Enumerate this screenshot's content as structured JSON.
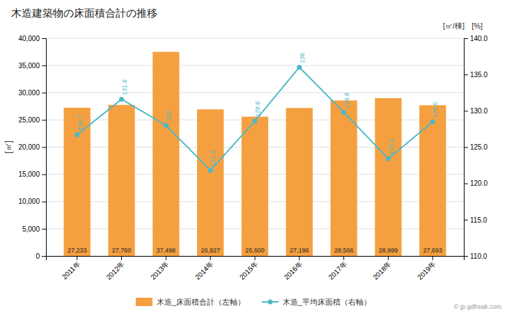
{
  "chart_data": {
    "type": "bar",
    "title": "木造建築物の床面積合計の推移",
    "categories": [
      "2011年",
      "2012年",
      "2013年",
      "2014年",
      "2015年",
      "2016年",
      "2017年",
      "2018年",
      "2019年"
    ],
    "series": [
      {
        "name": "木造_床面積合計（左軸）",
        "type": "bar",
        "color": "#f5a040",
        "values": [
          27233,
          27760,
          37498,
          26927,
          25600,
          27196,
          28566,
          28999,
          27693
        ],
        "value_labels": [
          "27,233",
          "27,760",
          "37,498",
          "26,927",
          "25,600",
          "27,196",
          "28,566",
          "28,999",
          "27,693"
        ]
      },
      {
        "name": "木造_平均床面積（右軸）",
        "type": "line",
        "axis": "y2",
        "color": "#4db8c8",
        "marker": "circle",
        "values": [
          126.7,
          131.6,
          128.0,
          121.8,
          128.6,
          136.0,
          129.8,
          123.4,
          128.5
        ]
      }
    ],
    "y_label": "[㎡]",
    "y2_label": "[㎡/棟]",
    "annotations": [
      "[%]",
      "© jp.gdfreak.com"
    ],
    "ylim": [
      0,
      40000
    ],
    "yticks": [
      0,
      {
        "value": 5000,
        "label": "5,000"
      },
      {
        "value": 10000,
        "label": "10,000"
      },
      {
        "value": 15000,
        "label": "15,000"
      },
      {
        "value": 20000,
        "label": "20,000"
      },
      {
        "value": 25000,
        "label": "25,000"
      },
      {
        "value": 30000,
        "label": "30,000"
      },
      {
        "value": 35000,
        "label": "35,000"
      },
      {
        "value": 40000,
        "label": "40,000"
      }
    ],
    "y2lim": [
      110,
      140
    ],
    "y2ticks": [
      {
        "value": 110,
        "label": "110.0"
      },
      {
        "value": 115,
        "label": "115.0"
      },
      {
        "value": 120,
        "label": "120.0"
      },
      {
        "value": 125,
        "label": "125.0"
      },
      {
        "value": 130,
        "label": "130.0"
      },
      {
        "value": 135,
        "label": "135.0"
      },
      {
        "value": 140,
        "label": "140.0"
      }
    ],
    "grid": true,
    "legend": "bottom",
    "data_labels": true
  }
}
